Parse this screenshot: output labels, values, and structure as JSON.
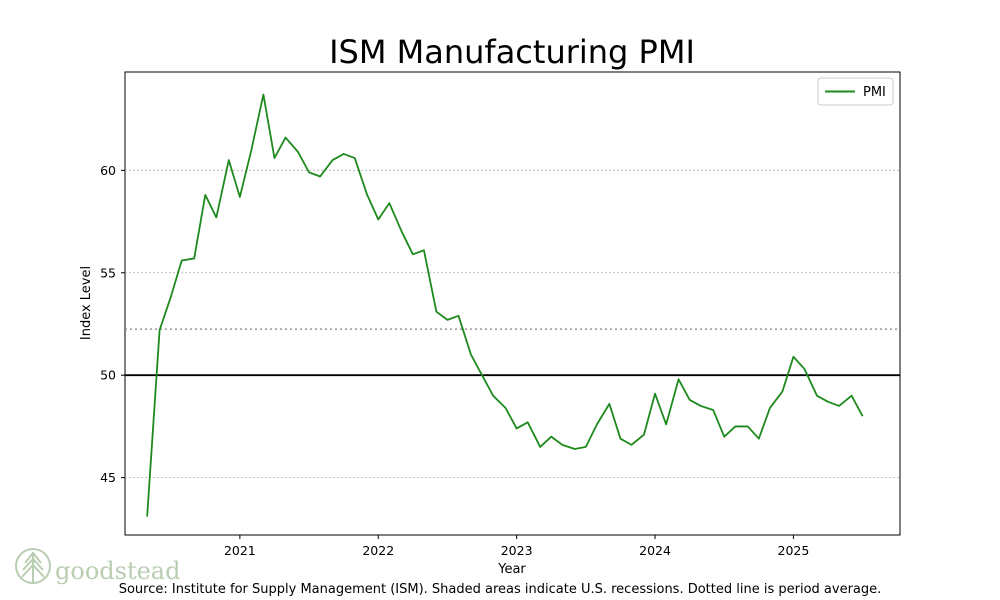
{
  "chart_data": {
    "type": "line",
    "title": "ISM Manufacturing PMI",
    "xlabel": "Year",
    "ylabel": "Index Level",
    "xlim": [
      2020.17,
      2025.77
    ],
    "ylim": [
      42.2,
      64.8
    ],
    "x_ticks": [
      2021,
      2022,
      2023,
      2024,
      2025
    ],
    "x_tick_labels": [
      "2021",
      "2022",
      "2023",
      "2024",
      "2025"
    ],
    "y_ticks": [
      45,
      50,
      55,
      60
    ],
    "y_tick_labels": [
      "45",
      "50",
      "55",
      "60"
    ],
    "grid": "horizontal dotted",
    "reference_lines": [
      {
        "name": "threshold",
        "value": 50,
        "style": "solid",
        "color": "#000000"
      },
      {
        "name": "period-average",
        "value": 52.25,
        "style": "dotted",
        "color": "#808080"
      }
    ],
    "legend": {
      "position": "top-right",
      "entries": [
        "PMI"
      ]
    },
    "series": [
      {
        "name": "PMI",
        "color": "#1e8a1e",
        "x": [
          2020.33,
          2020.42,
          2020.5,
          2020.58,
          2020.67,
          2020.75,
          2020.83,
          2020.92,
          2021.0,
          2021.08,
          2021.17,
          2021.25,
          2021.33,
          2021.42,
          2021.5,
          2021.58,
          2021.67,
          2021.75,
          2021.83,
          2021.92,
          2022.0,
          2022.08,
          2022.17,
          2022.25,
          2022.33,
          2022.42,
          2022.5,
          2022.58,
          2022.67,
          2022.75,
          2022.83,
          2022.92,
          2023.0,
          2023.08,
          2023.17,
          2023.25,
          2023.33,
          2023.42,
          2023.5,
          2023.58,
          2023.67,
          2023.75,
          2023.83,
          2023.92,
          2024.0,
          2024.08,
          2024.17,
          2024.25,
          2024.33,
          2024.42,
          2024.5,
          2024.58,
          2024.67,
          2024.75,
          2024.83,
          2024.92,
          2025.0,
          2025.08,
          2025.17,
          2025.25,
          2025.33,
          2025.42,
          2025.5
        ],
        "values": [
          43.1,
          52.2,
          53.8,
          55.6,
          55.7,
          58.8,
          57.7,
          60.5,
          58.7,
          60.9,
          63.7,
          60.6,
          61.6,
          60.9,
          59.9,
          59.7,
          60.5,
          60.8,
          60.6,
          58.8,
          57.6,
          58.4,
          57.0,
          55.9,
          56.1,
          53.1,
          52.7,
          52.9,
          51.0,
          50.0,
          49.0,
          48.4,
          47.4,
          47.7,
          46.5,
          47.0,
          46.6,
          46.4,
          46.5,
          47.6,
          48.6,
          46.9,
          46.6,
          47.1,
          49.1,
          47.6,
          49.8,
          48.8,
          48.5,
          48.3,
          47.0,
          47.5,
          47.5,
          46.9,
          48.4,
          49.2,
          50.9,
          50.3,
          49.0,
          48.7,
          48.5,
          49.0,
          48.0
        ]
      }
    ]
  },
  "footer": {
    "source": "Source:  Institute for Supply Management (ISM). Shaded areas indicate U.S. recessions. Dotted line is period average.",
    "brand_name": "goodstead"
  },
  "colors": {
    "line": "#1e8a1e",
    "brand": "#b8cdb1"
  }
}
